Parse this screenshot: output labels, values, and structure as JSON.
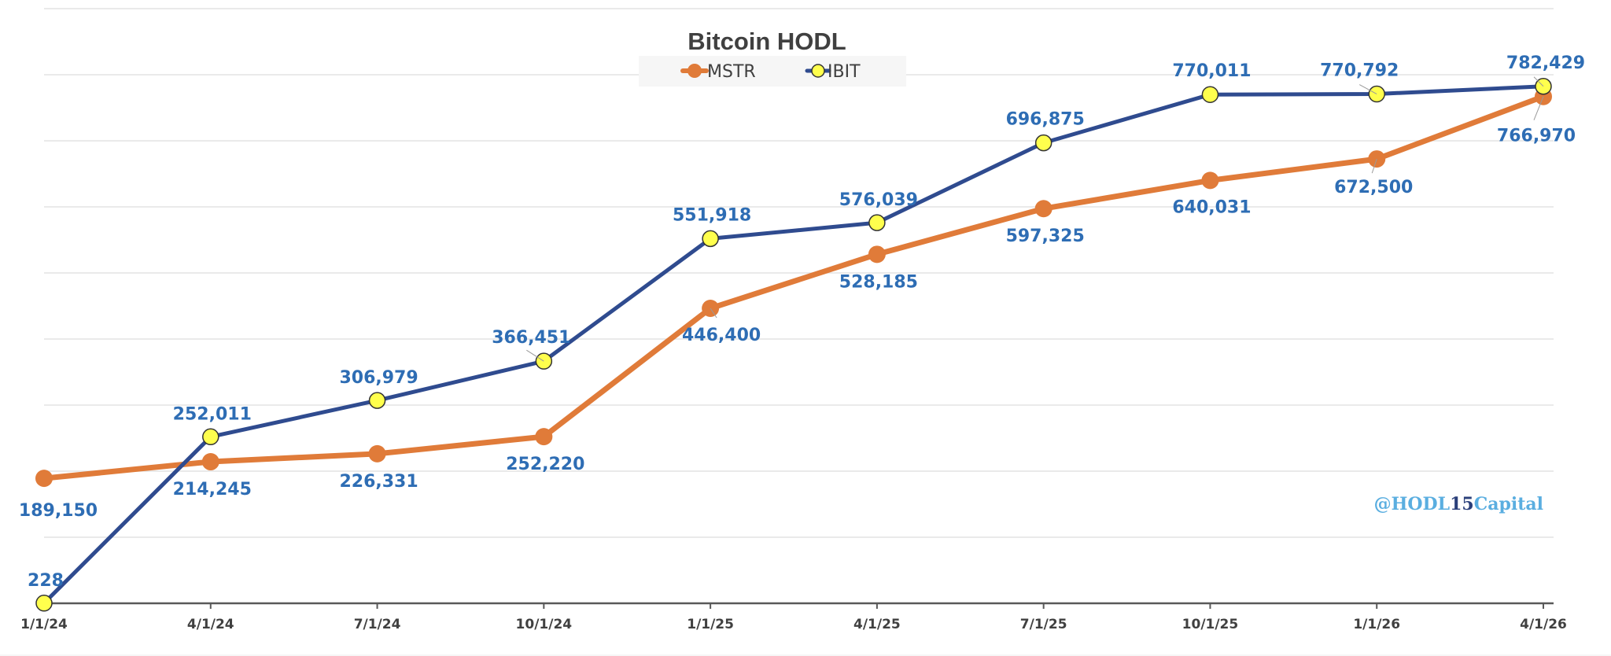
{
  "chart_data": {
    "type": "line",
    "title": "Bitcoin HODL",
    "xlabel": "",
    "ylabel": "",
    "categories": [
      "1/1/24",
      "4/1/24",
      "7/1/24",
      "10/1/24",
      "1/1/25",
      "4/1/25",
      "7/1/25",
      "10/1/25",
      "1/1/26",
      "4/1/26"
    ],
    "ylim": [
      0,
      900000
    ],
    "y_gridlines": [
      100000,
      200000,
      300000,
      400000,
      500000,
      600000,
      700000,
      800000,
      900000
    ],
    "grid": true,
    "legend_position": "top-center",
    "series": [
      {
        "name": "MSTR",
        "color": "#e07b39",
        "marker": "circle-filled",
        "values": [
          189150,
          214245,
          226331,
          252220,
          446400,
          528185,
          597325,
          640031,
          672500,
          766970
        ],
        "labels": [
          "189,150",
          "214,245",
          "226,331",
          "252,220",
          "446,400",
          "528,185",
          "597,325",
          "640,031",
          "672,500",
          "766,970"
        ]
      },
      {
        "name": "IBIT",
        "color": "#2f4b8f",
        "marker_fill": "#ffff4d",
        "marker": "circle-outlined",
        "values": [
          228,
          252011,
          306979,
          366451,
          551918,
          576039,
          696875,
          770011,
          770792,
          782429
        ],
        "labels": [
          "228",
          "252,011",
          "306,979",
          "366,451",
          "551,918",
          "576,039",
          "696,875",
          "770,011",
          "770,792",
          "782,429"
        ]
      }
    ],
    "watermark": {
      "prefix": "@HODL",
      "number": "15",
      "suffix": "Capital"
    }
  }
}
